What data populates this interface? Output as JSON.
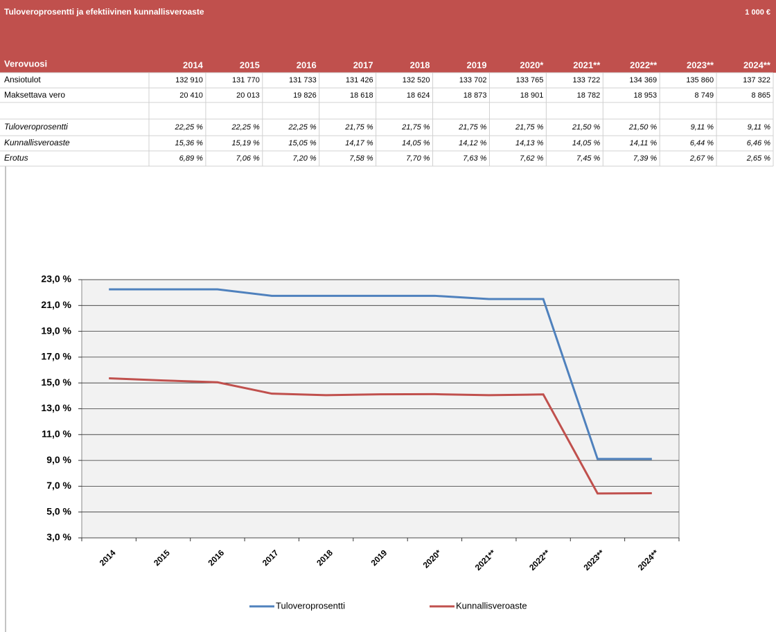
{
  "header": {
    "title": "Tuloveroprosentti ja efektiivinen kunnallisveroaste",
    "unit": "1 000 €"
  },
  "table": {
    "columns": [
      "Verovuosi",
      "2014",
      "2015",
      "2016",
      "2017",
      "2018",
      "2019",
      "2020*",
      "2021**",
      "2022**",
      "2023**",
      "2024**"
    ],
    "rows": [
      [
        "Ansiotulot",
        "132 910",
        "131 770",
        "131 733",
        "131 426",
        "132 520",
        "133 702",
        "133 765",
        "133 722",
        "134 369",
        "135 860",
        "137 322"
      ],
      [
        "Maksettava vero",
        "20 410",
        "20 013",
        "19 826",
        "18 618",
        "18 624",
        "18 873",
        "18 901",
        "18 782",
        "18 953",
        "8 749",
        "8 865"
      ]
    ],
    "italic_rows": [
      [
        "Tuloveroprosentti",
        "22,25 %",
        "22,25 %",
        "22,25 %",
        "21,75 %",
        "21,75 %",
        "21,75 %",
        "21,75 %",
        "21,50 %",
        "21,50 %",
        "9,11 %",
        "9,11 %"
      ],
      [
        "Kunnallisveroaste",
        "15,36 %",
        "15,19 %",
        "15,05 %",
        "14,17 %",
        "14,05 %",
        "14,12 %",
        "14,13 %",
        "14,05 %",
        "14,11 %",
        "6,44 %",
        "6,46 %"
      ],
      [
        "Erotus",
        "6,89 %",
        "7,06 %",
        "7,20 %",
        "7,58 %",
        "7,70 %",
        "7,63 %",
        "7,62 %",
        "7,45 %",
        "7,39 %",
        "2,67 %",
        "2,65 %"
      ]
    ]
  },
  "chart_data": {
    "type": "line",
    "categories": [
      "2014",
      "2015",
      "2016",
      "2017",
      "2018",
      "2019",
      "2020*",
      "2021**",
      "2022**",
      "2023**",
      "2024**"
    ],
    "series": [
      {
        "name": "Tuloveroprosentti",
        "color": "#4f81bd",
        "values": [
          22.25,
          22.25,
          22.25,
          21.75,
          21.75,
          21.75,
          21.75,
          21.5,
          21.5,
          9.11,
          9.11
        ]
      },
      {
        "name": "Kunnallisveroaste",
        "color": "#c0504d",
        "values": [
          15.36,
          15.19,
          15.05,
          14.17,
          14.05,
          14.12,
          14.13,
          14.05,
          14.11,
          6.44,
          6.46
        ]
      }
    ],
    "ylim": [
      3,
      23
    ],
    "yticks": [
      {
        "value": 3,
        "label": "3,0 %"
      },
      {
        "value": 5,
        "label": "5,0 %"
      },
      {
        "value": 7,
        "label": "7,0 %"
      },
      {
        "value": 9,
        "label": "9,0 %"
      },
      {
        "value": 11,
        "label": "11,0 %"
      },
      {
        "value": 13,
        "label": "13,0 %"
      },
      {
        "value": 15,
        "label": "15,0 %"
      },
      {
        "value": 17,
        "label": "17,0 %"
      },
      {
        "value": 19,
        "label": "19,0 %"
      },
      {
        "value": 21,
        "label": "21,0 %"
      },
      {
        "value": 23,
        "label": "23,0 %"
      }
    ],
    "grid": true,
    "legend": "bottom"
  }
}
